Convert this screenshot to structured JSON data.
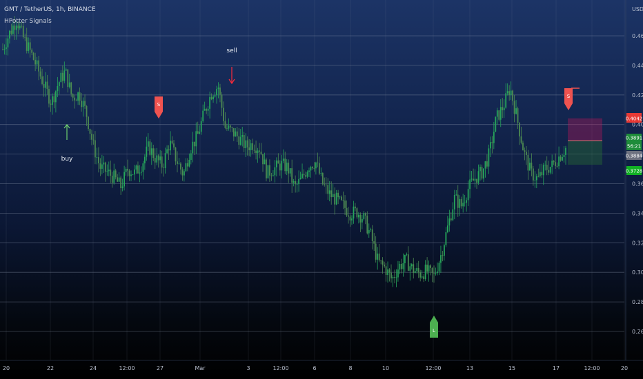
{
  "header": {
    "title": "GMT / TetherUS, 1h, BINANCE",
    "indicator": "HPotter Signals"
  },
  "chart_data": {
    "type": "candlestick",
    "currency": "USDT",
    "ylim": [
      0.2485,
      0.476
    ],
    "y_ticks": [
      {
        "value": 0.46,
        "label": "0.4600"
      },
      {
        "value": 0.44,
        "label": "0.4400"
      },
      {
        "value": 0.42,
        "label": "0.4200"
      },
      {
        "value": 0.4,
        "label": "0.4000"
      },
      {
        "value": 0.38,
        "label": "0.3800"
      },
      {
        "value": 0.36,
        "label": "0.3600"
      },
      {
        "value": 0.34,
        "label": "0.3400"
      },
      {
        "value": 0.32,
        "label": "0.3200"
      },
      {
        "value": 0.3,
        "label": "0.3000"
      },
      {
        "value": 0.28,
        "label": "0.2800"
      },
      {
        "value": 0.26,
        "label": "0.2600"
      }
    ],
    "x_ticks": [
      "20",
      "22",
      "24",
      "12:00",
      "27",
      "Mar",
      "3",
      "12:00",
      "6",
      "8",
      "10",
      "12:00",
      "13",
      "15",
      "17",
      "12:00",
      "20"
    ],
    "price_path": [
      0.451,
      0.462,
      0.471,
      0.458,
      0.449,
      0.438,
      0.426,
      0.415,
      0.428,
      0.436,
      0.418,
      0.421,
      0.408,
      0.386,
      0.371,
      0.368,
      0.364,
      0.358,
      0.37,
      0.367,
      0.373,
      0.385,
      0.377,
      0.372,
      0.388,
      0.376,
      0.366,
      0.384,
      0.392,
      0.408,
      0.421,
      0.426,
      0.398,
      0.395,
      0.391,
      0.385,
      0.387,
      0.384,
      0.367,
      0.37,
      0.373,
      0.371,
      0.357,
      0.363,
      0.372,
      0.375,
      0.36,
      0.353,
      0.349,
      0.345,
      0.34,
      0.341,
      0.336,
      0.324,
      0.307,
      0.303,
      0.295,
      0.304,
      0.308,
      0.302,
      0.299,
      0.301,
      0.297,
      0.311,
      0.33,
      0.35,
      0.345,
      0.357,
      0.364,
      0.368,
      0.38,
      0.404,
      0.412,
      0.425,
      0.404,
      0.381,
      0.367,
      0.363,
      0.37,
      0.372,
      0.378,
      0.384
    ],
    "price_labels": [
      {
        "label": "0.4042",
        "color": "#e53935"
      },
      {
        "label": "0.3891",
        "color": "#1e8c3a"
      },
      {
        "label": "56:21",
        "color": "#1e8c3a"
      },
      {
        "label": "0.3884",
        "color": "#6d7180"
      },
      {
        "label": "0.3728",
        "color": "#11b024"
      }
    ],
    "annotations": [
      {
        "text": "buy",
        "color": "#6fd06f"
      },
      {
        "text": "sell",
        "color": "#ff2a3a"
      }
    ],
    "signal_flags": [
      {
        "text": "S",
        "kind": "short",
        "color": "#ef5350"
      },
      {
        "text": "S",
        "kind": "short",
        "color": "#ef5350"
      },
      {
        "text": "L",
        "kind": "long",
        "color": "#4caf50"
      }
    ],
    "position_box": {
      "entry": 0.3891,
      "stop": 0.4042,
      "target": 0.3728,
      "stop_color": "#c2185b",
      "target_color": "#2e7d32"
    },
    "grid": true
  }
}
